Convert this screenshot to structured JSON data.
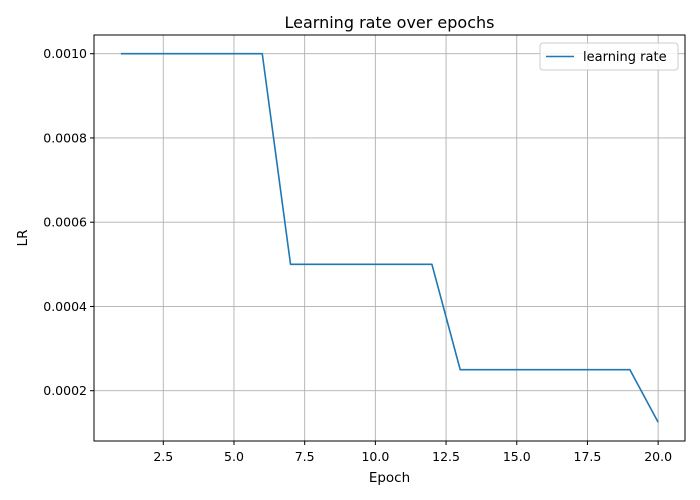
{
  "chart_data": {
    "type": "line",
    "title": "Learning rate over epochs",
    "xlabel": "Epoch",
    "ylabel": "LR",
    "xlim": [
      0.05,
      20.95
    ],
    "ylim": [
      8.06e-05,
      0.0010444
    ],
    "xticks": [
      2.5,
      5.0,
      7.5,
      10.0,
      12.5,
      15.0,
      17.5,
      20.0
    ],
    "xtick_labels": [
      "2.5",
      "5.0",
      "7.5",
      "10.0",
      "12.5",
      "15.0",
      "17.5",
      "20.0"
    ],
    "yticks": [
      0.0002,
      0.0004,
      0.0006,
      0.0008,
      0.001
    ],
    "ytick_labels": [
      "0.0002",
      "0.0004",
      "0.0006",
      "0.0008",
      "0.0010"
    ],
    "grid": true,
    "legend_position": "top-right",
    "colors": {
      "series": "#1f77b4",
      "grid": "#b0b0b0",
      "axis": "#000000"
    },
    "series": [
      {
        "name": "learning rate",
        "x": [
          1,
          2,
          3,
          4,
          5,
          6,
          7,
          8,
          9,
          10,
          11,
          12,
          13,
          14,
          15,
          16,
          17,
          18,
          19,
          20
        ],
        "values": [
          0.001,
          0.001,
          0.001,
          0.001,
          0.001,
          0.001,
          0.0005,
          0.0005,
          0.0005,
          0.0005,
          0.0005,
          0.0005,
          0.00025,
          0.00025,
          0.00025,
          0.00025,
          0.00025,
          0.00025,
          0.00025,
          0.000125
        ]
      }
    ]
  }
}
